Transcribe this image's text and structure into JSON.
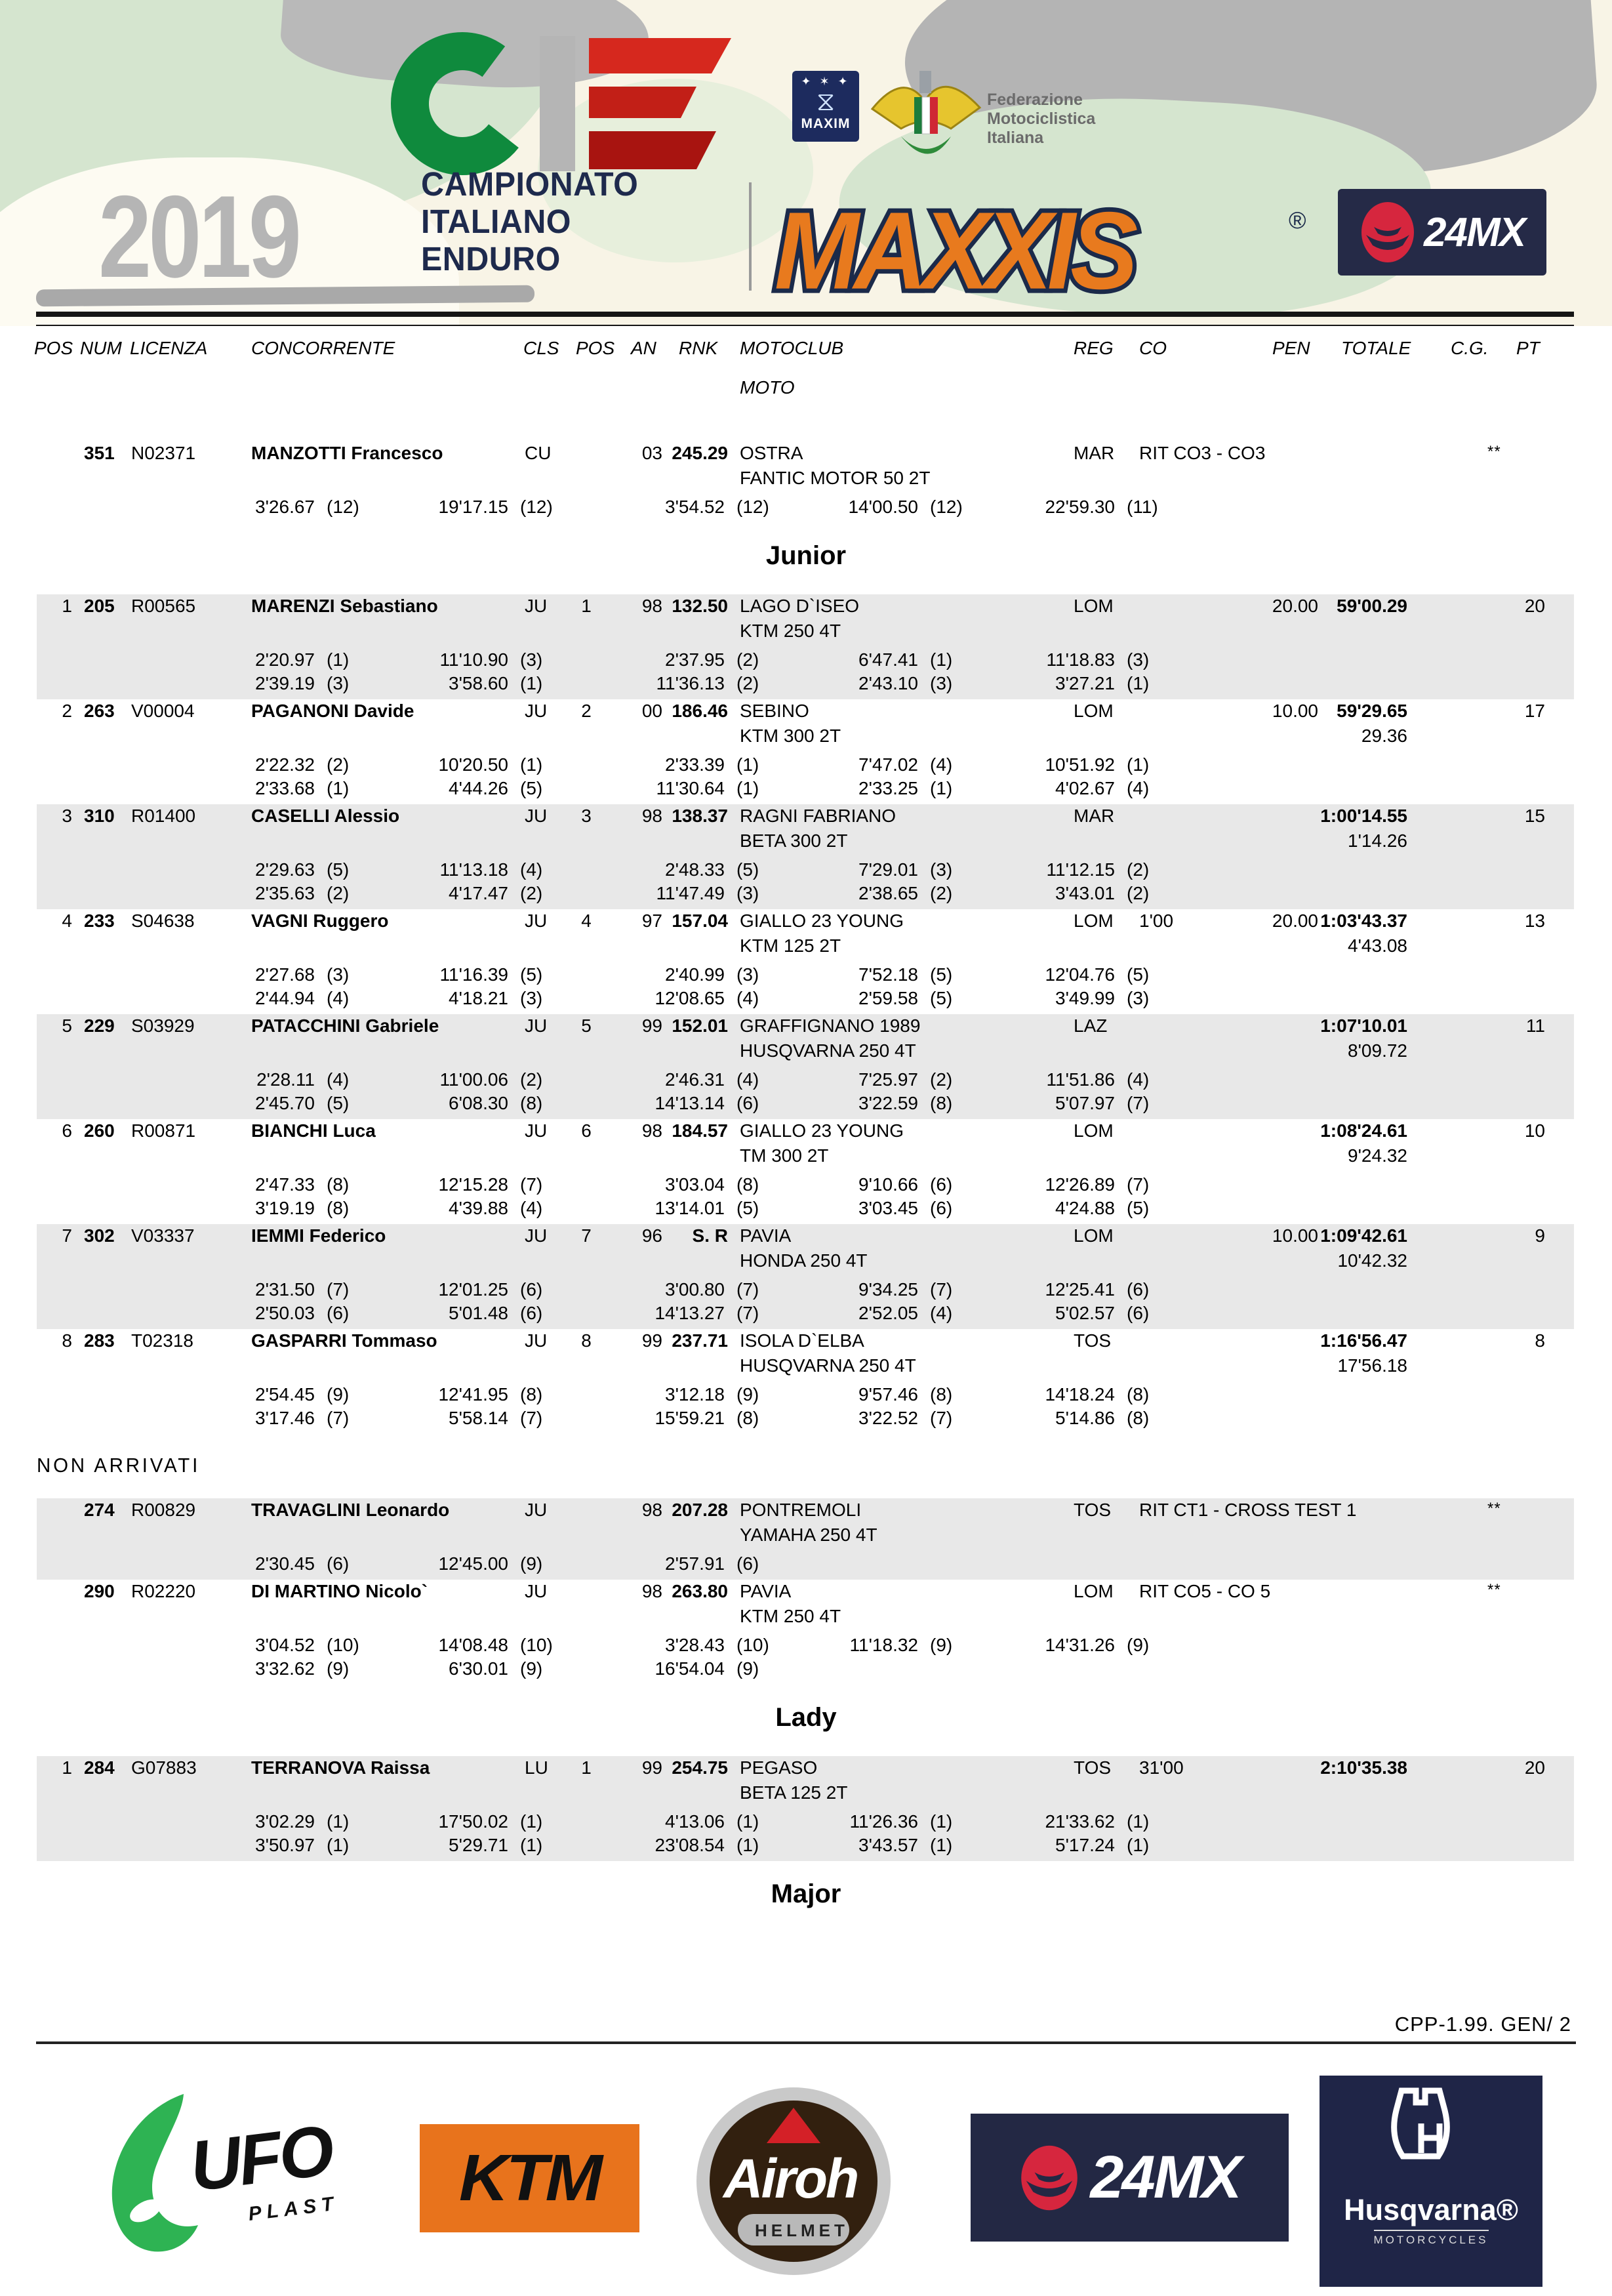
{
  "header": {
    "year": "2019",
    "title_line1": "CAMPIONATO",
    "title_line2": "ITALIANO",
    "title_line3": "ENDURO",
    "maxim_label": "MAXIM",
    "fmi_line1": "Federazione",
    "fmi_line2": "Motociclistica",
    "fmi_line3": "Italiana",
    "maxxis": "MAXXIS",
    "maxxis_reg": "®",
    "mx24": "24MX",
    "accent_orange": "#e87a1e",
    "accent_navy": "#1e2a4d",
    "accent_green": "#0f8a3d",
    "accent_red": "#d6281e"
  },
  "columns": {
    "pos": "POS",
    "num": "NUM",
    "licenza": "LICENZA",
    "concorrente": "CONCORRENTE",
    "cls": "CLS",
    "pos2": "POS",
    "an": "AN",
    "rnk": "RNK",
    "motoclub": "MOTOCLUB",
    "moto": "MOTO",
    "reg": "REG",
    "co": "CO",
    "pen": "PEN",
    "totale": "TOTALE",
    "cg": "C.G.",
    "pt": "PT"
  },
  "sections": [
    {
      "title": null,
      "rows": [
        {
          "stripe": false,
          "pos": "",
          "num": "351",
          "lic": "N02371",
          "name": "MANZOTTI Francesco",
          "cls": "CU",
          "pos2": "",
          "an": "03",
          "rnk": "245.29",
          "club": "OSTRA",
          "moto": "FANTIC MOTOR 50 2T",
          "reg": "MAR",
          "co": "RIT CO3 - CO3",
          "pen": "",
          "tot": "",
          "gap": "",
          "cg": "**",
          "pt": "",
          "times1": [
            [
              "3'26.67",
              "(12)"
            ],
            [
              "19'17.15",
              "(12)"
            ],
            [
              "3'54.52",
              "(12)"
            ],
            [
              "14'00.50",
              "(12)"
            ],
            [
              "22'59.30",
              "(11)"
            ]
          ],
          "times2": []
        }
      ]
    },
    {
      "title": "Junior",
      "style": "title",
      "rows": [
        {
          "stripe": true,
          "pos": "1",
          "num": "205",
          "lic": "R00565",
          "name": "MARENZI Sebastiano",
          "cls": "JU",
          "pos2": "1",
          "an": "98",
          "rnk": "132.50",
          "club": "LAGO D`ISEO",
          "moto": "KTM 250 4T",
          "reg": "LOM",
          "co": "",
          "pen": "20.00",
          "tot": "59'00.29",
          "gap": "",
          "cg": "",
          "pt": "20",
          "times1": [
            [
              "2'20.97",
              "(1)"
            ],
            [
              "11'10.90",
              "(3)"
            ],
            [
              "2'37.95",
              "(2)"
            ],
            [
              "6'47.41",
              "(1)"
            ],
            [
              "11'18.83",
              "(3)"
            ]
          ],
          "times2": [
            [
              "2'39.19",
              "(3)"
            ],
            [
              "3'58.60",
              "(1)"
            ],
            [
              "11'36.13",
              "(2)"
            ],
            [
              "2'43.10",
              "(3)"
            ],
            [
              "3'27.21",
              "(1)"
            ]
          ]
        },
        {
          "stripe": false,
          "pos": "2",
          "num": "263",
          "lic": "V00004",
          "name": "PAGANONI Davide",
          "cls": "JU",
          "pos2": "2",
          "an": "00",
          "rnk": "186.46",
          "club": "SEBINO",
          "moto": "KTM 300 2T",
          "reg": "LOM",
          "co": "",
          "pen": "10.00",
          "tot": "59'29.65",
          "gap": "29.36",
          "cg": "",
          "pt": "17",
          "times1": [
            [
              "2'22.32",
              "(2)"
            ],
            [
              "10'20.50",
              "(1)"
            ],
            [
              "2'33.39",
              "(1)"
            ],
            [
              "7'47.02",
              "(4)"
            ],
            [
              "10'51.92",
              "(1)"
            ]
          ],
          "times2": [
            [
              "2'33.68",
              "(1)"
            ],
            [
              "4'44.26",
              "(5)"
            ],
            [
              "11'30.64",
              "(1)"
            ],
            [
              "2'33.25",
              "(1)"
            ],
            [
              "4'02.67",
              "(4)"
            ]
          ]
        },
        {
          "stripe": true,
          "pos": "3",
          "num": "310",
          "lic": "R01400",
          "name": "CASELLI Alessio",
          "cls": "JU",
          "pos2": "3",
          "an": "98",
          "rnk": "138.37",
          "club": "RAGNI  FABRIANO",
          "moto": "BETA 300 2T",
          "reg": "MAR",
          "co": "",
          "pen": "",
          "tot": "1:00'14.55",
          "gap": "1'14.26",
          "cg": "",
          "pt": "15",
          "times1": [
            [
              "2'29.63",
              "(5)"
            ],
            [
              "11'13.18",
              "(4)"
            ],
            [
              "2'48.33",
              "(5)"
            ],
            [
              "7'29.01",
              "(3)"
            ],
            [
              "11'12.15",
              "(2)"
            ]
          ],
          "times2": [
            [
              "2'35.63",
              "(2)"
            ],
            [
              "4'17.47",
              "(2)"
            ],
            [
              "11'47.49",
              "(3)"
            ],
            [
              "2'38.65",
              "(2)"
            ],
            [
              "3'43.01",
              "(2)"
            ]
          ]
        },
        {
          "stripe": false,
          "pos": "4",
          "num": "233",
          "lic": "S04638",
          "name": "VAGNI Ruggero",
          "cls": "JU",
          "pos2": "4",
          "an": "97",
          "rnk": "157.04",
          "club": "GIALLO 23 YOUNG",
          "moto": "KTM 125 2T",
          "reg": "LOM",
          "co": "1'00",
          "pen": "20.00",
          "tot": "1:03'43.37",
          "gap": "4'43.08",
          "cg": "",
          "pt": "13",
          "times1": [
            [
              "2'27.68",
              "(3)"
            ],
            [
              "11'16.39",
              "(5)"
            ],
            [
              "2'40.99",
              "(3)"
            ],
            [
              "7'52.18",
              "(5)"
            ],
            [
              "12'04.76",
              "(5)"
            ]
          ],
          "times2": [
            [
              "2'44.94",
              "(4)"
            ],
            [
              "4'18.21",
              "(3)"
            ],
            [
              "12'08.65",
              "(4)"
            ],
            [
              "2'59.58",
              "(5)"
            ],
            [
              "3'49.99",
              "(3)"
            ]
          ]
        },
        {
          "stripe": true,
          "pos": "5",
          "num": "229",
          "lic": "S03929",
          "name": "PATACCHINI Gabriele",
          "cls": "JU",
          "pos2": "5",
          "an": "99",
          "rnk": "152.01",
          "club": "GRAFFIGNANO 1989",
          "moto": "HUSQVARNA 250 4T",
          "reg": "LAZ",
          "co": "",
          "pen": "",
          "tot": "1:07'10.01",
          "gap": "8'09.72",
          "cg": "",
          "pt": "11",
          "times1": [
            [
              "2'28.11",
              "(4)"
            ],
            [
              "11'00.06",
              "(2)"
            ],
            [
              "2'46.31",
              "(4)"
            ],
            [
              "7'25.97",
              "(2)"
            ],
            [
              "11'51.86",
              "(4)"
            ]
          ],
          "times2": [
            [
              "2'45.70",
              "(5)"
            ],
            [
              "6'08.30",
              "(8)"
            ],
            [
              "14'13.14",
              "(6)"
            ],
            [
              "3'22.59",
              "(8)"
            ],
            [
              "5'07.97",
              "(7)"
            ]
          ]
        },
        {
          "stripe": false,
          "pos": "6",
          "num": "260",
          "lic": "R00871",
          "name": "BIANCHI Luca",
          "cls": "JU",
          "pos2": "6",
          "an": "98",
          "rnk": "184.57",
          "club": "GIALLO 23 YOUNG",
          "moto": "TM 300 2T",
          "reg": "LOM",
          "co": "",
          "pen": "",
          "tot": "1:08'24.61",
          "gap": "9'24.32",
          "cg": "",
          "pt": "10",
          "times1": [
            [
              "2'47.33",
              "(8)"
            ],
            [
              "12'15.28",
              "(7)"
            ],
            [
              "3'03.04",
              "(8)"
            ],
            [
              "9'10.66",
              "(6)"
            ],
            [
              "12'26.89",
              "(7)"
            ]
          ],
          "times2": [
            [
              "3'19.19",
              "(8)"
            ],
            [
              "4'39.88",
              "(4)"
            ],
            [
              "13'14.01",
              "(5)"
            ],
            [
              "3'03.45",
              "(6)"
            ],
            [
              "4'24.88",
              "(5)"
            ]
          ]
        },
        {
          "stripe": true,
          "pos": "7",
          "num": "302",
          "lic": "V03337",
          "name": "IEMMI Federico",
          "cls": "JU",
          "pos2": "7",
          "an": "96",
          "rnk": "S. R",
          "club": "PAVIA",
          "moto": "HONDA 250 4T",
          "reg": "LOM",
          "co": "",
          "pen": "10.00",
          "tot": "1:09'42.61",
          "gap": "10'42.32",
          "cg": "",
          "pt": "9",
          "times1": [
            [
              "2'31.50",
              "(7)"
            ],
            [
              "12'01.25",
              "(6)"
            ],
            [
              "3'00.80",
              "(7)"
            ],
            [
              "9'34.25",
              "(7)"
            ],
            [
              "12'25.41",
              "(6)"
            ]
          ],
          "times2": [
            [
              "2'50.03",
              "(6)"
            ],
            [
              "5'01.48",
              "(6)"
            ],
            [
              "14'13.27",
              "(7)"
            ],
            [
              "2'52.05",
              "(4)"
            ],
            [
              "5'02.57",
              "(6)"
            ]
          ]
        },
        {
          "stripe": false,
          "pos": "8",
          "num": "283",
          "lic": "T02318",
          "name": "GASPARRI Tommaso",
          "cls": "JU",
          "pos2": "8",
          "an": "99",
          "rnk": "237.71",
          "club": "ISOLA D`ELBA",
          "moto": "HUSQVARNA 250 4T",
          "reg": "TOS",
          "co": "",
          "pen": "",
          "tot": "1:16'56.47",
          "gap": "17'56.18",
          "cg": "",
          "pt": "8",
          "times1": [
            [
              "2'54.45",
              "(9)"
            ],
            [
              "12'41.95",
              "(8)"
            ],
            [
              "3'12.18",
              "(9)"
            ],
            [
              "9'57.46",
              "(8)"
            ],
            [
              "14'18.24",
              "(8)"
            ]
          ],
          "times2": [
            [
              "3'17.46",
              "(7)"
            ],
            [
              "5'58.14",
              "(7)"
            ],
            [
              "15'59.21",
              "(8)"
            ],
            [
              "3'22.52",
              "(7)"
            ],
            [
              "5'14.86",
              "(8)"
            ]
          ]
        }
      ]
    },
    {
      "title": "NON  ARRIVATI",
      "style": "label",
      "rows": [
        {
          "stripe": true,
          "pos": "",
          "num": "274",
          "lic": "R00829",
          "name": "TRAVAGLINI Leonardo",
          "cls": "JU",
          "pos2": "",
          "an": "98",
          "rnk": "207.28",
          "club": "PONTREMOLI",
          "moto": "YAMAHA 250 4T",
          "reg": "TOS",
          "co": "RIT CT1 - CROSS TEST 1",
          "pen": "",
          "tot": "",
          "gap": "",
          "cg": "**",
          "pt": "",
          "times1": [
            [
              "2'30.45",
              "(6)"
            ],
            [
              "12'45.00",
              "(9)"
            ],
            [
              "2'57.91",
              "(6)"
            ]
          ],
          "times2": []
        },
        {
          "stripe": false,
          "pos": "",
          "num": "290",
          "lic": "R02220",
          "name": "DI MARTINO Nicolo`",
          "cls": "JU",
          "pos2": "",
          "an": "98",
          "rnk": "263.80",
          "club": "PAVIA",
          "moto": "KTM 250 4T",
          "reg": "LOM",
          "co": "RIT CO5 - CO 5",
          "pen": "",
          "tot": "",
          "gap": "",
          "cg": "**",
          "pt": "",
          "times1": [
            [
              "3'04.52",
              "(10)"
            ],
            [
              "14'08.48",
              "(10)"
            ],
            [
              "3'28.43",
              "(10)"
            ],
            [
              "11'18.32",
              "(9)"
            ],
            [
              "14'31.26",
              "(9)"
            ]
          ],
          "times2": [
            [
              "3'32.62",
              "(9)"
            ],
            [
              "6'30.01",
              "(9)"
            ],
            [
              "16'54.04",
              "(9)"
            ]
          ]
        }
      ]
    },
    {
      "title": "Lady",
      "style": "title",
      "rows": [
        {
          "stripe": true,
          "pos": "1",
          "num": "284",
          "lic": "G07883",
          "name": "TERRANOVA Raissa",
          "cls": "LU",
          "pos2": "1",
          "an": "99",
          "rnk": "254.75",
          "club": "PEGASO",
          "moto": "BETA 125 2T",
          "reg": "TOS",
          "co": "31'00",
          "pen": "",
          "tot": "2:10'35.38",
          "gap": "",
          "cg": "",
          "pt": "20",
          "times1": [
            [
              "3'02.29",
              "(1)"
            ],
            [
              "17'50.02",
              "(1)"
            ],
            [
              "4'13.06",
              "(1)"
            ],
            [
              "11'26.36",
              "(1)"
            ],
            [
              "21'33.62",
              "(1)"
            ]
          ],
          "times2": [
            [
              "3'50.97",
              "(1)"
            ],
            [
              "5'29.71",
              "(1)"
            ],
            [
              "23'08.54",
              "(1)"
            ],
            [
              "3'43.57",
              "(1)"
            ],
            [
              "5'17.24",
              "(1)"
            ]
          ]
        }
      ]
    },
    {
      "title": "Major",
      "style": "title",
      "rows": []
    }
  ],
  "footer": {
    "code": "CPP-1.99. GEN/  2",
    "logos": {
      "ufo": "UFO",
      "ufo_sub": "PLAST",
      "ktm": "KTM",
      "airoh": "Airoh",
      "airoh_sub": "HELMET",
      "mx24": "24MX",
      "husqvarna": "Husqvarna®",
      "husqvarna_sub": "MOTORCYCLES"
    }
  }
}
